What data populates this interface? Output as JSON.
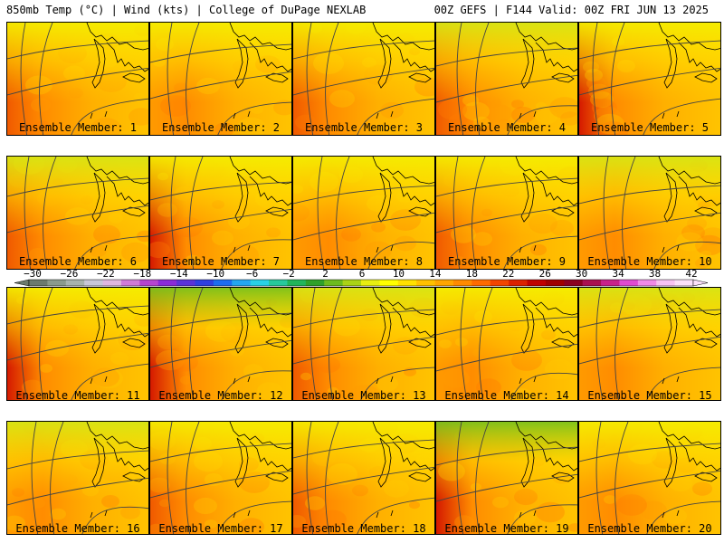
{
  "header": {
    "left": "850mb Temp (°C) | Wind (kts) | College of DuPage NEXLAB",
    "right": "00Z GEFS | F144 Valid: 00Z FRI JUN 13 2025"
  },
  "member_prefix": "Ensemble Member: ",
  "members": [
    {
      "label": "Ensemble Member: 1"
    },
    {
      "label": "Ensemble Member: 2"
    },
    {
      "label": "Ensemble Member: 3"
    },
    {
      "label": "Ensemble Member: 4"
    },
    {
      "label": "Ensemble Member: 5"
    },
    {
      "label": "Ensemble Member: 6"
    },
    {
      "label": "Ensemble Member: 7"
    },
    {
      "label": "Ensemble Member: 8"
    },
    {
      "label": "Ensemble Member: 9"
    },
    {
      "label": "Ensemble Member: 10"
    },
    {
      "label": "Ensemble Member: 11"
    },
    {
      "label": "Ensemble Member: 12"
    },
    {
      "label": "Ensemble Member: 13"
    },
    {
      "label": "Ensemble Member: 14"
    },
    {
      "label": "Ensemble Member: 15"
    },
    {
      "label": "Ensemble Member: 16"
    },
    {
      "label": "Ensemble Member: 17"
    },
    {
      "label": "Ensemble Member: 18"
    },
    {
      "label": "Ensemble Member: 19"
    },
    {
      "label": "Ensemble Member: 20"
    }
  ],
  "colorbar": {
    "labels": [
      "−30",
      "−26",
      "−22",
      "−18",
      "−14",
      "−10",
      "−6",
      "−2",
      "2",
      "6",
      "10",
      "14",
      "18",
      "22",
      "26",
      "30",
      "34",
      "38",
      "42"
    ],
    "colors": [
      "#6b7a6e",
      "#8a9a8c",
      "#a7b3ad",
      "#c7c7d7",
      "#dfb7df",
      "#d07bd8",
      "#b544d0",
      "#8a2ad8",
      "#5a32d8",
      "#2f3fe0",
      "#1d6cf0",
      "#24a6f0",
      "#29d1e6",
      "#26c99c",
      "#21b55a",
      "#2ea02a",
      "#6cbb1e",
      "#aad316",
      "#e8ee10",
      "#ffff00",
      "#ffe000",
      "#ffc000",
      "#ffa500",
      "#ff8a00",
      "#ff6a00",
      "#f24400",
      "#dc2000",
      "#c00000",
      "#a00000",
      "#8a0020",
      "#aa1050",
      "#c8208a",
      "#e04ad0",
      "#f08ae8",
      "#f7c2f3",
      "#fbe0fb"
    ]
  }
}
